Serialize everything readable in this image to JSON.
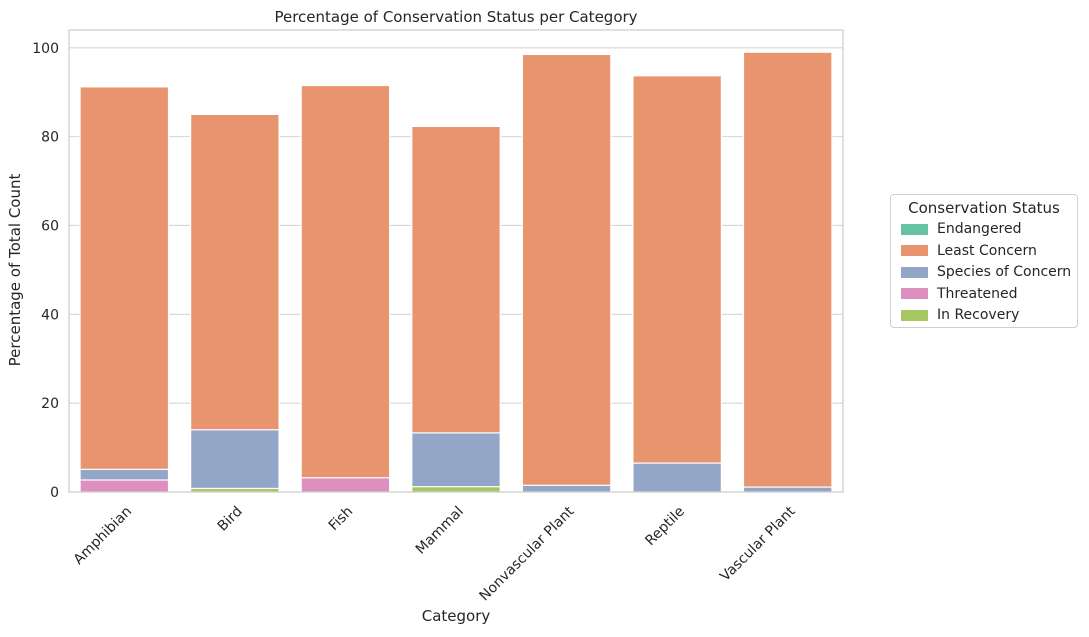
{
  "chart_data": {
    "type": "bar",
    "title": "Percentage of Conservation Status per Category",
    "xlabel": "Category",
    "ylabel": "Percentage of Total Count",
    "ylim": [
      0,
      104
    ],
    "yticks": [
      0,
      20,
      40,
      60,
      80,
      100
    ],
    "grid": true,
    "legend_title": "Conservation Status",
    "legend_position": "outside-right",
    "categories": [
      "Amphibian",
      "Bird",
      "Fish",
      "Mammal",
      "Nonvascular Plant",
      "Reptile",
      "Vascular Plant"
    ],
    "series": [
      {
        "name": "Least Concern",
        "color": "#e8956f",
        "values": [
          91.2,
          85.0,
          91.5,
          82.3,
          98.5,
          93.7,
          99.0
        ]
      },
      {
        "name": "Species of Concern",
        "color": "#94a6c7",
        "values": [
          5.1,
          14.0,
          0.0,
          13.3,
          1.5,
          6.5,
          1.1
        ]
      },
      {
        "name": "Threatened",
        "color": "#dd8fc0",
        "values": [
          2.7,
          0.0,
          3.2,
          0.0,
          0.0,
          0.0,
          0.0
        ]
      },
      {
        "name": "In Recovery",
        "color": "#a5c861",
        "values": [
          0.0,
          0.8,
          0.0,
          1.2,
          0.0,
          0.0,
          0.0
        ]
      },
      {
        "name": "Endangered",
        "color": "#66c2a5",
        "values": [
          0.0,
          0.0,
          0.0,
          0.0,
          0.0,
          0.0,
          0.0
        ]
      }
    ],
    "legend_order": [
      "Endangered",
      "Least Concern",
      "Species of Concern",
      "Threatened",
      "In Recovery"
    ]
  }
}
